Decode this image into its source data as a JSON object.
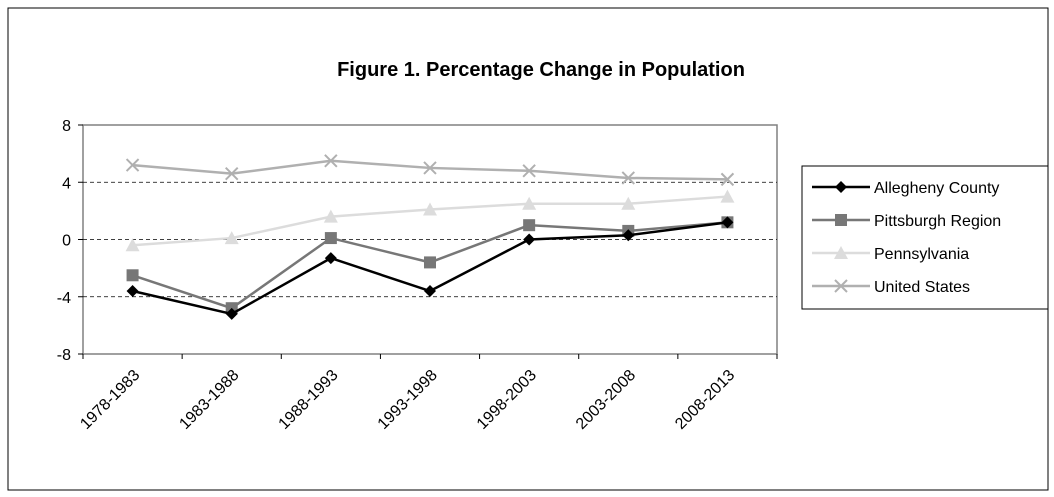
{
  "chart_data": {
    "type": "line",
    "title": "Figure 1. Percentage Change in Population",
    "categories": [
      "1978-1983",
      "1983-1988",
      "1988-1993",
      "1993-1998",
      "1998-2003",
      "2003-2008",
      "2008-2013"
    ],
    "series": [
      {
        "name": "Allegheny County",
        "color": "#000000",
        "marker": "diamond",
        "values": [
          -3.6,
          -5.2,
          -1.3,
          -3.6,
          0.0,
          0.3,
          1.2
        ]
      },
      {
        "name": "Pittsburgh Region",
        "color": "#777777",
        "marker": "square",
        "values": [
          -2.5,
          -4.8,
          0.1,
          -1.6,
          1.0,
          0.6,
          1.2
        ]
      },
      {
        "name": "Pennsylvania",
        "color": "#dcdcdc",
        "marker": "triangle",
        "values": [
          -0.4,
          0.1,
          1.6,
          2.1,
          2.5,
          2.5,
          3.0
        ]
      },
      {
        "name": "United States",
        "color": "#b0b0b0",
        "marker": "x",
        "values": [
          5.2,
          4.6,
          5.5,
          5.0,
          4.8,
          4.3,
          4.2
        ]
      }
    ],
    "ylim": [
      -8,
      8
    ],
    "yticks": [
      -8,
      -4,
      0,
      4,
      8
    ],
    "grid": true,
    "legend": "right"
  }
}
